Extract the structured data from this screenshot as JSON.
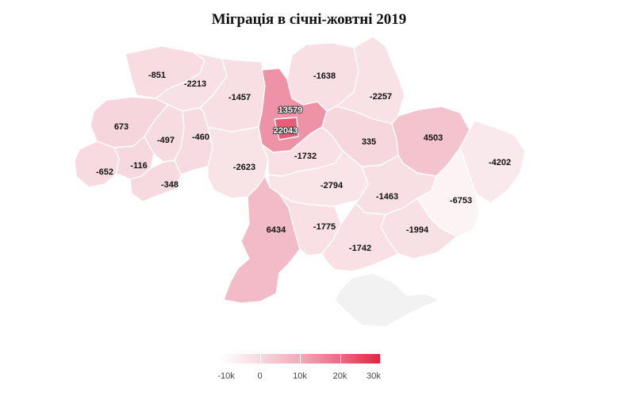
{
  "title": "Міграція в січні-жовтні 2019",
  "chart_data": {
    "type": "choropleth",
    "title": "Міграція в січні-жовтні 2019",
    "color_scale": {
      "min": -10000,
      "max": 30000,
      "colors": [
        "#ffffff",
        "#f6d9df",
        "#f1aab9",
        "#ea6b86",
        "#e3243f"
      ],
      "ticks": [
        "-10k",
        "0",
        "10k",
        "20k",
        "30k"
      ]
    },
    "regions": [
      {
        "id": "volyn",
        "value": -851
      },
      {
        "id": "rivne",
        "value": -2213
      },
      {
        "id": "zhytomyr",
        "value": -1457
      },
      {
        "id": "kyiv-oblast",
        "value": 13579
      },
      {
        "id": "kyiv-city",
        "value": 22043
      },
      {
        "id": "chernihiv",
        "value": -1638
      },
      {
        "id": "sumy",
        "value": -2257
      },
      {
        "id": "lviv",
        "value": 673
      },
      {
        "id": "ternopil",
        "value": -497
      },
      {
        "id": "khmelnytskyi",
        "value": -460
      },
      {
        "id": "zakarpattia",
        "value": -652
      },
      {
        "id": "ivano-frankivsk",
        "value": -116
      },
      {
        "id": "chernivtsi",
        "value": -348
      },
      {
        "id": "vinnytsia",
        "value": -2623
      },
      {
        "id": "cherkasy",
        "value": -1732
      },
      {
        "id": "poltava",
        "value": 335
      },
      {
        "id": "kharkiv",
        "value": 4503
      },
      {
        "id": "luhansk",
        "value": -4202
      },
      {
        "id": "kirovohrad",
        "value": -2794
      },
      {
        "id": "dnipropetrovsk",
        "value": -1463
      },
      {
        "id": "donetsk",
        "value": -6753
      },
      {
        "id": "odesa",
        "value": 6434
      },
      {
        "id": "mykolaiv",
        "value": -1775
      },
      {
        "id": "zaporizhzhia",
        "value": -1994
      },
      {
        "id": "kherson",
        "value": -1742
      },
      {
        "id": "crimea",
        "value": null
      }
    ]
  }
}
